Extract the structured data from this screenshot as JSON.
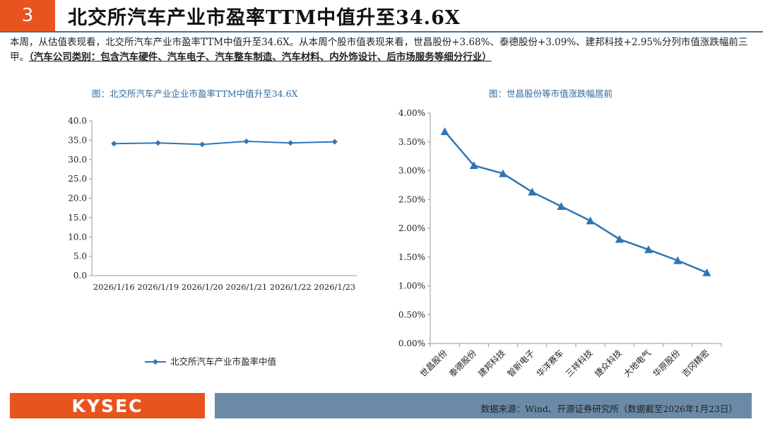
{
  "header": {
    "slide_number": "3",
    "title": "北交所汽车产业市盈率TTM中值升至34.6X"
  },
  "summary": {
    "text": "本周，从估值表现看，北交所汽车产业市盈率TTM中值升至34.6X。从本周个股市值表现来看，世昌股份+3.68%、泰德股份+3.09%、建邦科技+2.95%分列市值涨跌幅前三甲。",
    "highlight": "（汽车公司类别：包含汽车硬件、汽车电子、汽车整车制造、汽车材料、内外饰设计、后市场服务等细分行业）"
  },
  "chart_data": [
    {
      "type": "line",
      "title": "图：北交所汽车产业企业市盈率TTM中值升至34.6X",
      "x": [
        "2026/1/16",
        "2026/1/19",
        "2026/1/20",
        "2026/1/21",
        "2026/1/22",
        "2026/1/23"
      ],
      "series": [
        {
          "name": "北交所汽车产业市盈率中值",
          "values": [
            34.1,
            34.3,
            33.9,
            34.7,
            34.3,
            34.6
          ]
        }
      ],
      "ylim": [
        0,
        40
      ],
      "yticks": [
        "0.0",
        "5.0",
        "10.0",
        "15.0",
        "20.0",
        "25.0",
        "30.0",
        "35.0",
        "40.0"
      ],
      "legend": "bottom",
      "color": "#2e75b6"
    },
    {
      "type": "line",
      "title": "图：世昌股份等市值涨跌幅居前",
      "categories": [
        "世昌股份",
        "泰德股份",
        "建邦科技",
        "智新电子",
        "华洋赛车",
        "三祥科技",
        "捷众科技",
        "大地电气",
        "华原股份",
        "吉冈精密"
      ],
      "values": [
        3.68,
        3.09,
        2.95,
        2.63,
        2.38,
        2.13,
        1.81,
        1.63,
        1.44,
        1.23
      ],
      "ylim": [
        0,
        4
      ],
      "yticks": [
        "0.00%",
        "0.50%",
        "1.00%",
        "1.50%",
        "2.00%",
        "2.50%",
        "3.00%",
        "3.50%",
        "4.00%"
      ],
      "color": "#2e75b6"
    }
  ],
  "footer": {
    "logo": "KYSEC",
    "source": "数据来源：Wind、开源证券研究所（数据截至2026年1月23日）"
  }
}
